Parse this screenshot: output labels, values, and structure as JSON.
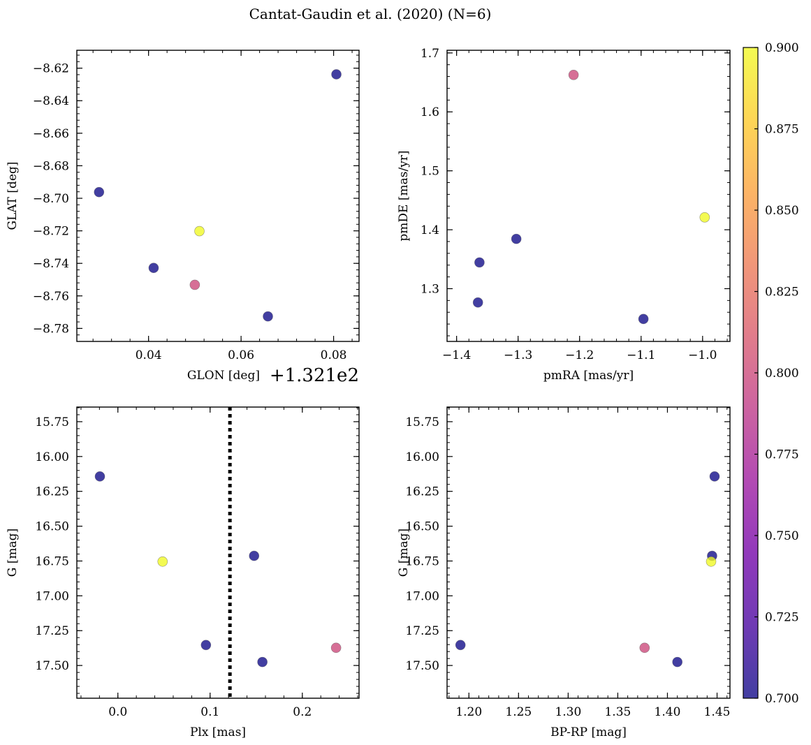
{
  "figure_title": "Cantat-Gaudin et al. (2020) (N=6)",
  "colors": {
    "cmap": [
      "#0d0887",
      "#46039f",
      "#7201a8",
      "#9c179e",
      "#bd3786",
      "#d8576b",
      "#ed7953",
      "#fb9f3a",
      "#fdca26",
      "#f0f921"
    ],
    "point_alpha": 0.78,
    "point_edge": "#555555",
    "vline": "#000000"
  },
  "colorbar": {
    "min": 0.7,
    "max": 0.9,
    "ticks": [
      "0.700",
      "0.725",
      "0.750",
      "0.775",
      "0.800",
      "0.825",
      "0.850",
      "0.875",
      "0.900"
    ]
  },
  "chart_data": [
    {
      "type": "scatter",
      "title": "",
      "xlabel": "GLON [deg]",
      "ylabel": "GLAT [deg]",
      "offset_text": "+1.321e2",
      "xlim": [
        0.0245,
        0.0855
      ],
      "ylim": [
        -8.788,
        -8.609
      ],
      "y_inverted": false,
      "xticks": [
        {
          "v": 0.04,
          "label": "0.04"
        },
        {
          "v": 0.06,
          "label": "0.06"
        },
        {
          "v": 0.08,
          "label": "0.08"
        }
      ],
      "yticks": [
        {
          "v": -8.62,
          "label": "−8.62"
        },
        {
          "v": -8.64,
          "label": "−8.64"
        },
        {
          "v": -8.66,
          "label": "−8.66"
        },
        {
          "v": -8.68,
          "label": "−8.68"
        },
        {
          "v": -8.7,
          "label": "−8.70"
        },
        {
          "v": -8.72,
          "label": "−8.72"
        },
        {
          "v": -8.74,
          "label": "−8.74"
        },
        {
          "v": -8.76,
          "label": "−8.76"
        },
        {
          "v": -8.78,
          "label": "−8.78"
        }
      ],
      "x_minor_step": 0.004,
      "y_minor_step": 0.004,
      "points": [
        {
          "x": 0.0806,
          "y": -8.6238,
          "c": 0.7
        },
        {
          "x": 0.0293,
          "y": -8.6962,
          "c": 0.7
        },
        {
          "x": 0.051,
          "y": -8.7202,
          "c": 0.9
        },
        {
          "x": 0.0411,
          "y": -8.7428,
          "c": 0.7
        },
        {
          "x": 0.05,
          "y": -8.7532,
          "c": 0.8
        },
        {
          "x": 0.0658,
          "y": -8.7726,
          "c": 0.7
        }
      ]
    },
    {
      "type": "scatter",
      "title": "",
      "xlabel": "pmRA [mas/yr]",
      "ylabel": "pmDE [mas/yr]",
      "xlim": [
        -1.4155,
        -0.9555
      ],
      "ylim": [
        1.2105,
        1.7045
      ],
      "y_inverted": false,
      "xticks": [
        {
          "v": -1.4,
          "label": "−1.4"
        },
        {
          "v": -1.3,
          "label": "−1.3"
        },
        {
          "v": -1.2,
          "label": "−1.2"
        },
        {
          "v": -1.1,
          "label": "−1.1"
        },
        {
          "v": -1.0,
          "label": "−1.0"
        }
      ],
      "yticks": [
        {
          "v": 1.3,
          "label": "1.3"
        },
        {
          "v": 1.4,
          "label": "1.4"
        },
        {
          "v": 1.5,
          "label": "1.5"
        },
        {
          "v": 1.6,
          "label": "1.6"
        },
        {
          "v": 1.7,
          "label": "1.7"
        }
      ],
      "x_minor_step": 0.02,
      "y_minor_step": 0.02,
      "points": [
        {
          "x": -1.2098,
          "y": 1.6627,
          "c": 0.8
        },
        {
          "x": -0.9966,
          "y": 1.421,
          "c": 0.9
        },
        {
          "x": -1.3029,
          "y": 1.3845,
          "c": 0.7
        },
        {
          "x": -1.3628,
          "y": 1.3445,
          "c": 0.7
        },
        {
          "x": -1.3653,
          "y": 1.2766,
          "c": 0.7
        },
        {
          "x": -1.0962,
          "y": 1.2486,
          "c": 0.7
        }
      ]
    },
    {
      "type": "scatter",
      "title": "",
      "xlabel": "Plx [mas]",
      "ylabel": "G [mag]",
      "xlim": [
        -0.0445,
        0.2615
      ],
      "ylim": [
        17.735,
        15.645
      ],
      "y_inverted": true,
      "xticks": [
        {
          "v": 0.0,
          "label": "0.0"
        },
        {
          "v": 0.1,
          "label": "0.1"
        },
        {
          "v": 0.2,
          "label": "0.2"
        }
      ],
      "yticks": [
        {
          "v": 15.75,
          "label": "15.75"
        },
        {
          "v": 16.0,
          "label": "16.00"
        },
        {
          "v": 16.25,
          "label": "16.25"
        },
        {
          "v": 16.5,
          "label": "16.50"
        },
        {
          "v": 16.75,
          "label": "16.75"
        },
        {
          "v": 17.0,
          "label": "17.00"
        },
        {
          "v": 17.25,
          "label": "17.25"
        },
        {
          "v": 17.5,
          "label": "17.50"
        }
      ],
      "x_minor_step": 0.02,
      "y_minor_step": 0.05,
      "vline": {
        "x": 0.1215,
        "style": "dotted"
      },
      "points": [
        {
          "x": -0.0195,
          "y": 16.143,
          "c": 0.7
        },
        {
          "x": 0.0485,
          "y": 16.754,
          "c": 0.9
        },
        {
          "x": 0.1477,
          "y": 16.713,
          "c": 0.7
        },
        {
          "x": 0.0955,
          "y": 17.353,
          "c": 0.7
        },
        {
          "x": 0.2366,
          "y": 17.373,
          "c": 0.8
        },
        {
          "x": 0.1567,
          "y": 17.475,
          "c": 0.7
        }
      ]
    },
    {
      "type": "scatter",
      "title": "",
      "xlabel": "BP-RP [mag]",
      "ylabel": "G [mag]",
      "xlim": [
        1.178,
        1.463
      ],
      "ylim": [
        17.735,
        15.645
      ],
      "y_inverted": true,
      "xticks": [
        {
          "v": 1.2,
          "label": "1.20"
        },
        {
          "v": 1.25,
          "label": "1.25"
        },
        {
          "v": 1.3,
          "label": "1.30"
        },
        {
          "v": 1.35,
          "label": "1.35"
        },
        {
          "v": 1.4,
          "label": "1.40"
        },
        {
          "v": 1.45,
          "label": "1.45"
        }
      ],
      "yticks": [
        {
          "v": 15.75,
          "label": "15.75"
        },
        {
          "v": 16.0,
          "label": "16.00"
        },
        {
          "v": 16.25,
          "label": "16.25"
        },
        {
          "v": 16.5,
          "label": "16.50"
        },
        {
          "v": 16.75,
          "label": "16.75"
        },
        {
          "v": 17.0,
          "label": "17.00"
        },
        {
          "v": 17.25,
          "label": "17.25"
        },
        {
          "v": 17.5,
          "label": "17.50"
        }
      ],
      "x_minor_step": 0.01,
      "y_minor_step": 0.05,
      "points": [
        {
          "x": 1.4475,
          "y": 16.143,
          "c": 0.7
        },
        {
          "x": 1.445,
          "y": 16.713,
          "c": 0.7
        },
        {
          "x": 1.444,
          "y": 16.754,
          "c": 0.9
        },
        {
          "x": 1.1915,
          "y": 17.353,
          "c": 0.7
        },
        {
          "x": 1.377,
          "y": 17.373,
          "c": 0.8
        },
        {
          "x": 1.41,
          "y": 17.475,
          "c": 0.7
        }
      ]
    }
  ]
}
